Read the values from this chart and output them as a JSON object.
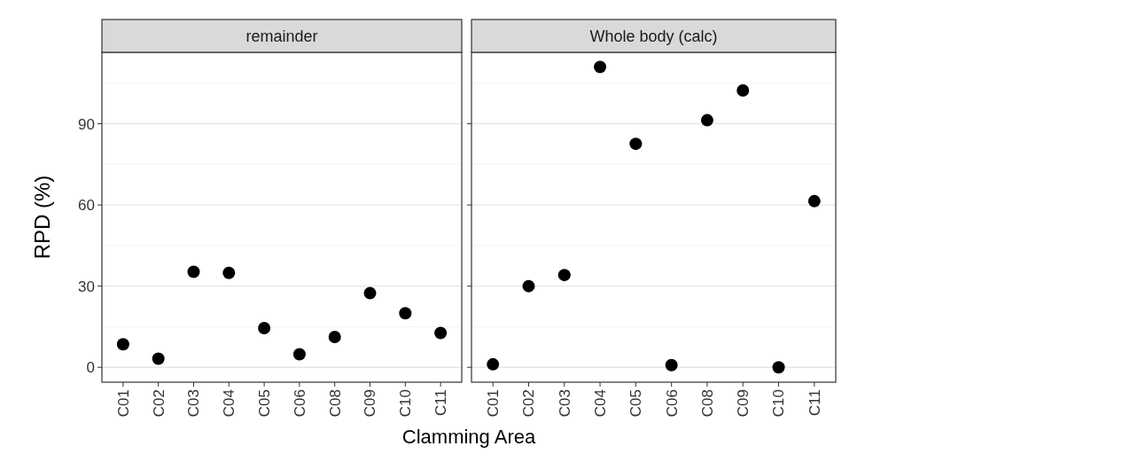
{
  "chart_data": [
    {
      "type": "scatter",
      "title": "remainder",
      "xlabel": "Clamming Area",
      "ylabel": "RPD (%)",
      "categories": [
        "C01",
        "C02",
        "C03",
        "C04",
        "C05",
        "C06",
        "C08",
        "C09",
        "C10",
        "C11"
      ],
      "series": [
        {
          "color": "#000000",
          "values": [
            8.5,
            3.2,
            35.3,
            34.9,
            14.5,
            4.8,
            11.2,
            27.4,
            20.0,
            12.7
          ]
        }
      ],
      "ylim": [
        -5.5,
        116.4
      ],
      "yticks": [
        0,
        {
          "value": 15,
          "label": null
        },
        30,
        {
          "value": 45,
          "label": null
        },
        60,
        {
          "value": 75,
          "label": null
        },
        90,
        {
          "value": 105,
          "label": null
        }
      ],
      "grid": true,
      "marker": "circle"
    },
    {
      "type": "scatter",
      "title": "Whole body (calc)",
      "categories": [
        "C01",
        "C02",
        "C03",
        "C04",
        "C05",
        "C06",
        "C08",
        "C09",
        "C10",
        "C11"
      ],
      "series": [
        {
          "color": "#000000",
          "values": [
            1.1,
            30.0,
            34.1,
            111.0,
            82.6,
            0.8,
            91.3,
            102.3,
            0.0,
            61.4
          ]
        }
      ],
      "ylim": [
        -5.5,
        116.4
      ],
      "yticks": [
        0,
        {
          "value": 15,
          "label": null
        },
        30,
        {
          "value": 45,
          "label": null
        },
        60,
        {
          "value": 75,
          "label": null
        },
        90,
        {
          "value": 105,
          "label": null
        }
      ],
      "grid": true,
      "marker": "circle",
      "tick_labels": "x"
    }
  ]
}
